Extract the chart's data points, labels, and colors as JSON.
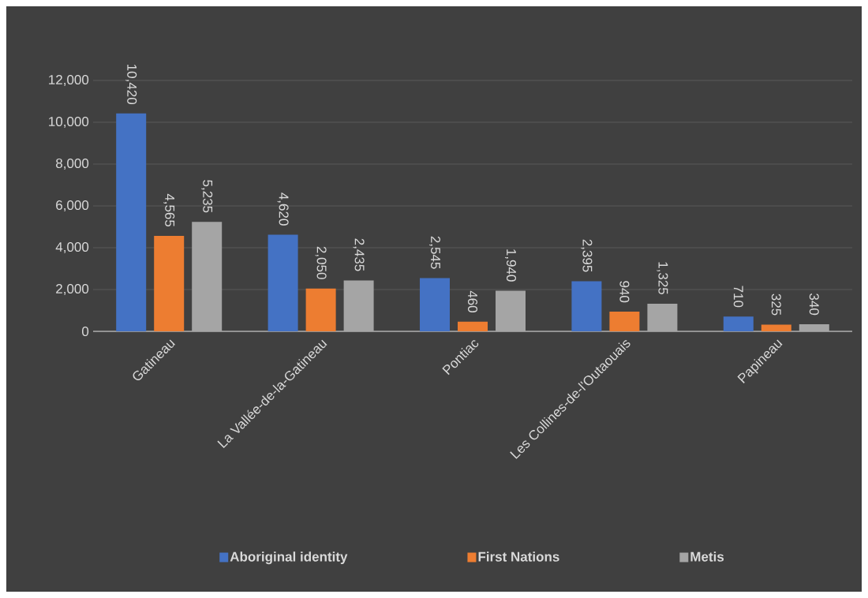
{
  "chart_data": {
    "type": "bar",
    "categories": [
      "Gatineau",
      "La Vallée-de-la-Gatineau",
      "Pontiac",
      "Les Collines-de-l'Outaouais",
      "Papineau"
    ],
    "series": [
      {
        "name": "Aboriginal identity",
        "color": "#4472c4",
        "values": [
          10420,
          4620,
          2545,
          2395,
          710
        ],
        "value_labels": [
          "10,420",
          "4,620",
          "2,545",
          "2,395",
          "710"
        ]
      },
      {
        "name": "First Nations",
        "color": "#ed7d31",
        "values": [
          4565,
          2050,
          460,
          940,
          325
        ],
        "value_labels": [
          "4,565",
          "2,050",
          "460",
          "940",
          "325"
        ]
      },
      {
        "name": "Metis",
        "color": "#a5a5a5",
        "values": [
          5235,
          2435,
          1940,
          1325,
          340
        ],
        "value_labels": [
          "5,235",
          "2,435",
          "1,940",
          "1,325",
          "340"
        ]
      }
    ],
    "ylim": [
      0,
      12000
    ],
    "yticks": [
      {
        "value": 0,
        "label": "0"
      },
      {
        "value": 2000,
        "label": "2,000"
      },
      {
        "value": 4000,
        "label": "4,000"
      },
      {
        "value": 6000,
        "label": "6,000"
      },
      {
        "value": 8000,
        "label": "8,000"
      },
      {
        "value": 10000,
        "label": "10,000"
      },
      {
        "value": 12000,
        "label": "12,000"
      }
    ],
    "grid": "y",
    "legend": "bottom"
  }
}
